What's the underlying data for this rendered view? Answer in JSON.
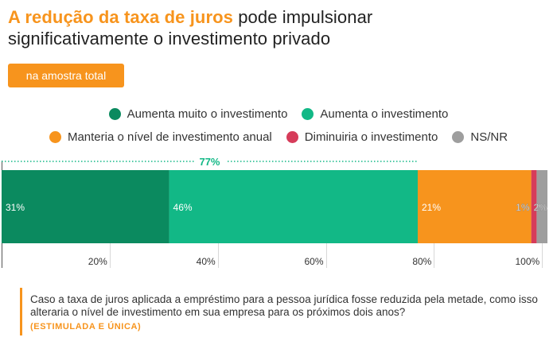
{
  "title": {
    "highlight": "A redução da taxa de juros",
    "rest_line1": " pode impulsionar",
    "line2": "significativamente o investimento privado"
  },
  "sample_badge": "na amostra total",
  "legend": [
    {
      "label": "Aumenta muito o investimento",
      "color": "#0b8a5f"
    },
    {
      "label": "Aumenta o investimento",
      "color": "#12b886"
    },
    {
      "label": "Manteria o nível de investimento anual",
      "color": "#f7941d"
    },
    {
      "label": "Diminuiria o investimento",
      "color": "#d63c5a"
    },
    {
      "label": "NS/NR",
      "color": "#9e9e9e"
    }
  ],
  "chart_data": {
    "type": "bar",
    "orientation": "horizontal",
    "stacked": true,
    "series": [
      {
        "name": "Aumenta muito o investimento",
        "value": 31,
        "label": "31%",
        "color": "#0b8a5f"
      },
      {
        "name": "Aumenta o investimento",
        "value": 46,
        "label": "46%",
        "color": "#12b886"
      },
      {
        "name": "Manteria o nível de investimento anual",
        "value": 21,
        "label": "21%",
        "color": "#f7941d"
      },
      {
        "name": "Diminuiria o investimento",
        "value": 1,
        "label": "1%",
        "color": "#d63c5a"
      },
      {
        "name": "NS/NR",
        "value": 2,
        "label": "2%",
        "color": "#9e9e9e"
      }
    ],
    "xlim": [
      0,
      101
    ],
    "x_ticks": [
      20,
      40,
      60,
      80,
      100
    ],
    "x_tick_labels": [
      "20%",
      "40%",
      "60%",
      "80%",
      "100%"
    ],
    "bracket": {
      "from": 0,
      "to": 77,
      "label": "77%",
      "color": "#12b886"
    },
    "grid": true
  },
  "question": "Caso a taxa de juros aplicada a empréstimo para a pessoa jurídica fosse reduzida pela metade, como isso alteraria o nível de investimento em sua empresa para os próximos dois anos?",
  "question_tag": "(ESTIMULADA E ÚNICA)"
}
